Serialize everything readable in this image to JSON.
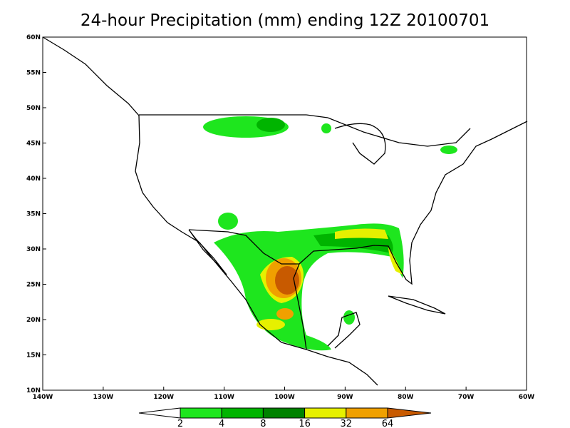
{
  "title": "24-hour Precipitation (mm) ending 12Z 20100701",
  "map": {
    "lon_ticks": [
      "140W",
      "130W",
      "120W",
      "110W",
      "100W",
      "90W",
      "80W",
      "70W",
      "60W"
    ],
    "lat_ticks": [
      "60N",
      "55N",
      "50N",
      "45N",
      "40N",
      "35N",
      "30N",
      "25N",
      "20N",
      "15N",
      "10N"
    ]
  },
  "colorbar": {
    "labels": [
      "2",
      "4",
      "8",
      "16",
      "32",
      "64"
    ],
    "colors": [
      "#ffffff",
      "#1ee61e",
      "#00b400",
      "#008200",
      "#e6f000",
      "#f0a000",
      "#c85a00"
    ]
  }
}
